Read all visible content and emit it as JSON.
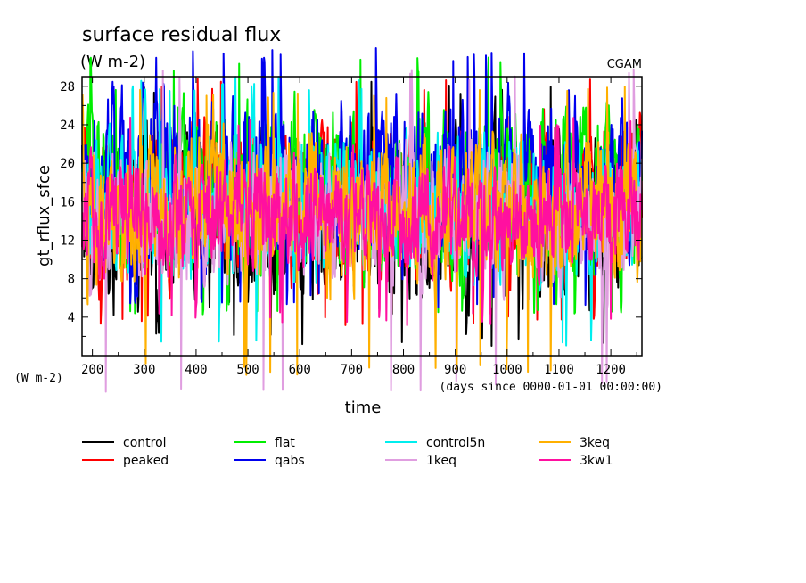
{
  "chart_data": {
    "type": "line",
    "title": "surface residual flux",
    "subtitle": "(W m-2)",
    "source_label": "CGAM",
    "ylabel": "gt_rflux_sfce",
    "yunits": "(W m-2)",
    "xlabel": "time",
    "xunits": "(days since 0000-01-01 00:00:00)",
    "xlim": [
      180,
      1260
    ],
    "ylim": [
      0.0,
      29.0
    ],
    "xticks": [
      200,
      300,
      400,
      500,
      600,
      700,
      800,
      900,
      1000,
      1100,
      1200
    ],
    "yticks": [
      4,
      8,
      12,
      16,
      20,
      24,
      28
    ],
    "grid": false,
    "legend_position": "bottom",
    "series": [
      {
        "name": "control",
        "color": "#000000",
        "center": 14.5,
        "amp": 6.5,
        "min": 1.0,
        "max": 28.5
      },
      {
        "name": "peaked",
        "color": "#ff0000",
        "center": 16.0,
        "amp": 5.5,
        "min": 3.0,
        "max": 29.0
      },
      {
        "name": "flat",
        "color": "#00ee00",
        "center": 17.0,
        "amp": 6.0,
        "min": 4.0,
        "max": 31.0
      },
      {
        "name": "qabs",
        "color": "#0000ee",
        "center": 18.0,
        "amp": 6.0,
        "min": 5.0,
        "max": 32.0
      },
      {
        "name": "control5n",
        "color": "#00eeee",
        "center": 15.5,
        "amp": 5.0,
        "min": 1.0,
        "max": 29.0
      },
      {
        "name": "1keq",
        "color": "#e09ee0",
        "center": 14.5,
        "amp": 5.0,
        "min": -4.0,
        "max": 30.0
      },
      {
        "name": "3keq",
        "color": "#ffb000",
        "center": 15.0,
        "amp": 5.5,
        "min": -2.0,
        "max": 28.0
      },
      {
        "name": "3kw1",
        "color": "#ff10a0",
        "center": 14.5,
        "amp": 4.0,
        "min": 3.0,
        "max": 25.0
      }
    ]
  }
}
